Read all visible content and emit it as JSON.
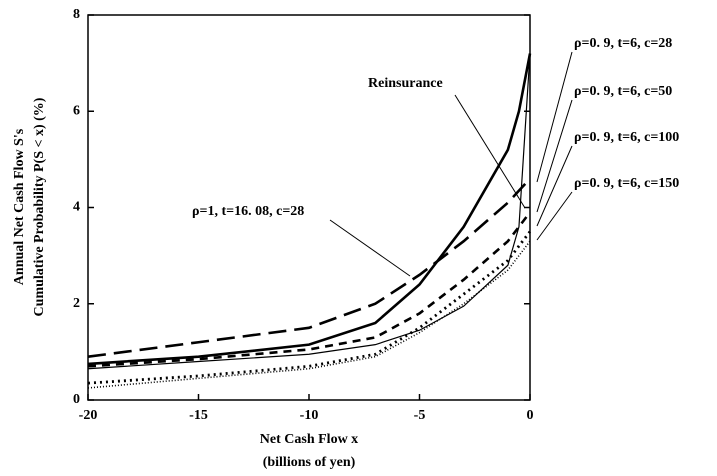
{
  "chart_data": {
    "type": "line",
    "y_label": [
      "Annual Net Cash Flow S's",
      "Cumulative Probability P(S < x)  (%)"
    ],
    "x_label": [
      "Net Cash Flow x",
      "(billions of yen)"
    ],
    "x": [
      -20,
      -15,
      -10,
      -7,
      -5,
      -3,
      -1,
      -0.5,
      0
    ],
    "series": [
      {
        "name": "Reinsurance",
        "color": "#000",
        "width": 1.2,
        "dash": "none",
        "values": [
          0.65,
          0.8,
          0.95,
          1.15,
          1.45,
          1.95,
          2.8,
          3.6,
          7.2
        ]
      },
      {
        "name": "ρ=1, t=16. 08, c=28",
        "color": "#000",
        "width": 2.6,
        "dash": "none",
        "values": [
          0.75,
          0.9,
          1.15,
          1.6,
          2.4,
          3.6,
          5.2,
          6.0,
          7.2
        ]
      },
      {
        "name": "ρ=0. 9, t=6, c=28",
        "color": "#000",
        "width": 2.6,
        "dash": "18 8",
        "values": [
          0.9,
          1.2,
          1.5,
          2.0,
          2.6,
          3.3,
          4.1,
          4.35,
          4.6
        ]
      },
      {
        "name": "ρ=0. 9, t=6, c=50",
        "color": "#000",
        "width": 2.6,
        "dash": "8 6",
        "values": [
          0.7,
          0.85,
          1.05,
          1.3,
          1.8,
          2.5,
          3.3,
          3.6,
          3.9
        ]
      },
      {
        "name": "ρ=0. 9, t=6, c=100",
        "color": "#000",
        "width": 2.8,
        "dash": "2 4",
        "values": [
          0.35,
          0.5,
          0.7,
          0.95,
          1.5,
          2.2,
          2.9,
          3.2,
          3.5
        ]
      },
      {
        "name": "ρ=0. 9, t=6, c=150",
        "color": "#000",
        "width": 1.6,
        "dash": "1 2",
        "values": [
          0.25,
          0.45,
          0.65,
          0.9,
          1.4,
          2.0,
          2.7,
          3.0,
          3.3
        ]
      }
    ],
    "xlim": [
      -20,
      0
    ],
    "ylim": [
      0,
      8
    ],
    "xticks": [
      -20,
      -15,
      -10,
      -5,
      0
    ],
    "yticks": [
      0,
      2,
      4,
      6,
      8
    ]
  }
}
